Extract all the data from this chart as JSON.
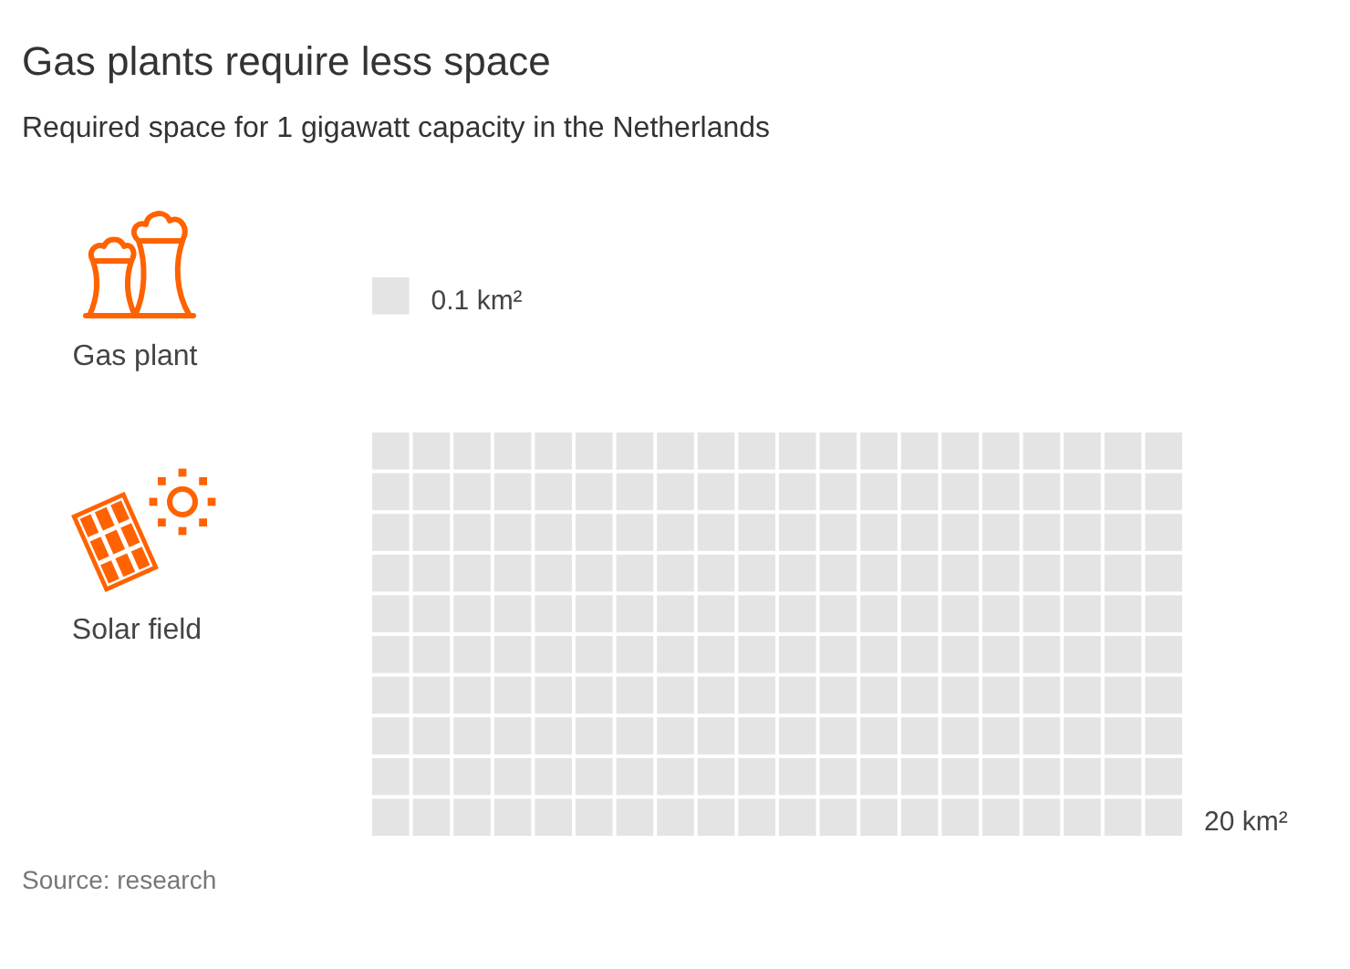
{
  "chart_data": {
    "type": "other",
    "title": "Gas plants require less space",
    "subtitle": "Required space for 1 gigawatt capacity in the Netherlands",
    "categories": [
      "Gas plant",
      "Solar field"
    ],
    "values": [
      0.1,
      20
    ],
    "value_labels": [
      "0.1 km²",
      "20 km²"
    ],
    "color": "#e4e4e4",
    "annotations": [
      "Source: research"
    ]
  }
}
